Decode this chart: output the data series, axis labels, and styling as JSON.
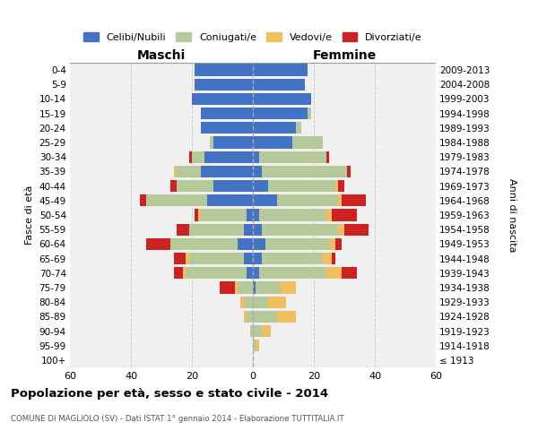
{
  "age_groups": [
    "100+",
    "95-99",
    "90-94",
    "85-89",
    "80-84",
    "75-79",
    "70-74",
    "65-69",
    "60-64",
    "55-59",
    "50-54",
    "45-49",
    "40-44",
    "35-39",
    "30-34",
    "25-29",
    "20-24",
    "15-19",
    "10-14",
    "5-9",
    "0-4"
  ],
  "birth_years": [
    "≤ 1913",
    "1914-1918",
    "1919-1923",
    "1924-1928",
    "1929-1933",
    "1934-1938",
    "1939-1943",
    "1944-1948",
    "1949-1953",
    "1954-1958",
    "1959-1963",
    "1964-1968",
    "1969-1973",
    "1974-1978",
    "1979-1983",
    "1984-1988",
    "1989-1993",
    "1994-1998",
    "1999-2003",
    "2004-2008",
    "2009-2013"
  ],
  "colors": {
    "celibi": "#4472c4",
    "coniugati": "#b5c99a",
    "vedovi": "#f0c060",
    "divorziati": "#cc2222"
  },
  "maschi": {
    "celibi": [
      0,
      0,
      0,
      0,
      0,
      0,
      2,
      3,
      5,
      3,
      2,
      15,
      13,
      17,
      16,
      13,
      17,
      17,
      20,
      19,
      19
    ],
    "coniugati": [
      0,
      0,
      1,
      2,
      3,
      5,
      20,
      18,
      22,
      18,
      15,
      20,
      12,
      8,
      4,
      1,
      0,
      0,
      0,
      0,
      0
    ],
    "vedovi": [
      0,
      0,
      0,
      1,
      1,
      1,
      1,
      1,
      0,
      0,
      1,
      0,
      0,
      1,
      0,
      0,
      0,
      0,
      0,
      0,
      0
    ],
    "divorziati": [
      0,
      0,
      0,
      0,
      0,
      5,
      3,
      4,
      8,
      4,
      1,
      2,
      2,
      0,
      1,
      0,
      0,
      0,
      0,
      0,
      0
    ]
  },
  "femmine": {
    "celibi": [
      0,
      0,
      0,
      0,
      0,
      1,
      2,
      3,
      4,
      3,
      2,
      8,
      5,
      3,
      2,
      13,
      14,
      18,
      19,
      17,
      18
    ],
    "coniugati": [
      0,
      1,
      3,
      8,
      5,
      8,
      22,
      20,
      21,
      25,
      22,
      20,
      22,
      28,
      22,
      10,
      2,
      1,
      0,
      0,
      0
    ],
    "vedovi": [
      0,
      1,
      3,
      6,
      6,
      5,
      5,
      3,
      2,
      2,
      2,
      1,
      1,
      0,
      0,
      0,
      0,
      0,
      0,
      0,
      0
    ],
    "divorziati": [
      0,
      0,
      0,
      0,
      0,
      0,
      5,
      1,
      2,
      8,
      8,
      8,
      2,
      1,
      1,
      0,
      0,
      0,
      0,
      0,
      0
    ]
  },
  "title": "Popolazione per età, sesso e stato civile - 2014",
  "subtitle": "COMUNE DI MAGLIOLO (SV) - Dati ISTAT 1° gennaio 2014 - Elaborazione TUTTITALIA.IT",
  "xlabel_left": "Maschi",
  "xlabel_right": "Femmine",
  "ylabel_left": "Fasce di età",
  "ylabel_right": "Anni di nascita",
  "xlim": 60,
  "legend_labels": [
    "Celibi/Nubili",
    "Coniugati/e",
    "Vedovi/e",
    "Divorziati/e"
  ],
  "bg_color": "#f0f0f0",
  "grid_color": "#cccccc"
}
